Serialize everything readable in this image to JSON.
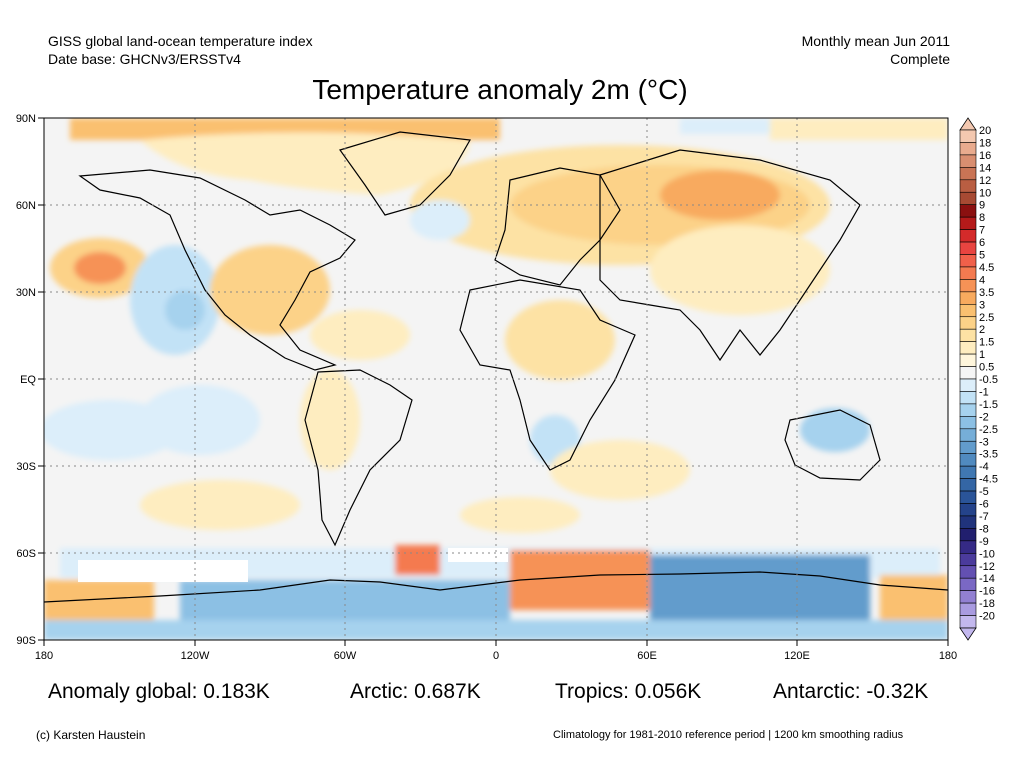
{
  "header": {
    "line1_left": "GISS global land-ocean temperature index",
    "line2_left": "Date base: GHCNv3/ERSSTv4",
    "line1_right": "Monthly mean Jun 2011",
    "line2_right": "Complete"
  },
  "title": "Temperature anomaly 2m (°C)",
  "map": {
    "lat_labels": [
      "90N",
      "60N",
      "30N",
      "EQ",
      "30S",
      "60S",
      "90S"
    ],
    "lon_labels": [
      "180",
      "120W",
      "60W",
      "0",
      "60E",
      "120E",
      "180"
    ]
  },
  "colorbar": {
    "labels": [
      "20",
      "18",
      "16",
      "14",
      "12",
      "10",
      "9",
      "8",
      "7",
      "6",
      "5",
      "4.5",
      "4",
      "3.5",
      "3",
      "2.5",
      "2",
      "1.5",
      "1",
      "0.5",
      "-0.5",
      "-1",
      "-1.5",
      "-2",
      "-2.5",
      "-3",
      "-3.5",
      "-4",
      "-4.5",
      "-5",
      "-6",
      "-7",
      "-8",
      "-9",
      "-10",
      "-12",
      "-14",
      "-16",
      "-18",
      "-20"
    ],
    "colors": [
      "#f3c8b0",
      "#e9ab8e",
      "#d98e70",
      "#c97455",
      "#b95e42",
      "#a74a33",
      "#8b1010",
      "#b51a1a",
      "#d42a2a",
      "#e84440",
      "#f0604a",
      "#f47a50",
      "#f69256",
      "#f8aa5e",
      "#fac070",
      "#fcd288",
      "#fde2a4",
      "#feedc0",
      "#fff6dc",
      "#f5f5f5",
      "#dceefa",
      "#c2e2f6",
      "#a6d2ee",
      "#8cc0e4",
      "#76aed8",
      "#629ccc",
      "#508abf",
      "#4078b2",
      "#3466a5",
      "#2a5498",
      "#24438a",
      "#20337c",
      "#211f6e",
      "#352a86",
      "#4b3b9c",
      "#6350b2",
      "#7a68c4",
      "#9280d2",
      "#a99be0",
      "#c3b8ee"
    ]
  },
  "stats": {
    "global": "Anomaly global: 0.183K",
    "arctic": "Arctic: 0.687K",
    "tropics": "Tropics: 0.056K",
    "antarctic": "Antarctic: -0.32K"
  },
  "footer": {
    "left": "(c) Karsten Haustein",
    "right": "Climatology for 1981-2010 reference period | 1200 km smoothing radius"
  }
}
